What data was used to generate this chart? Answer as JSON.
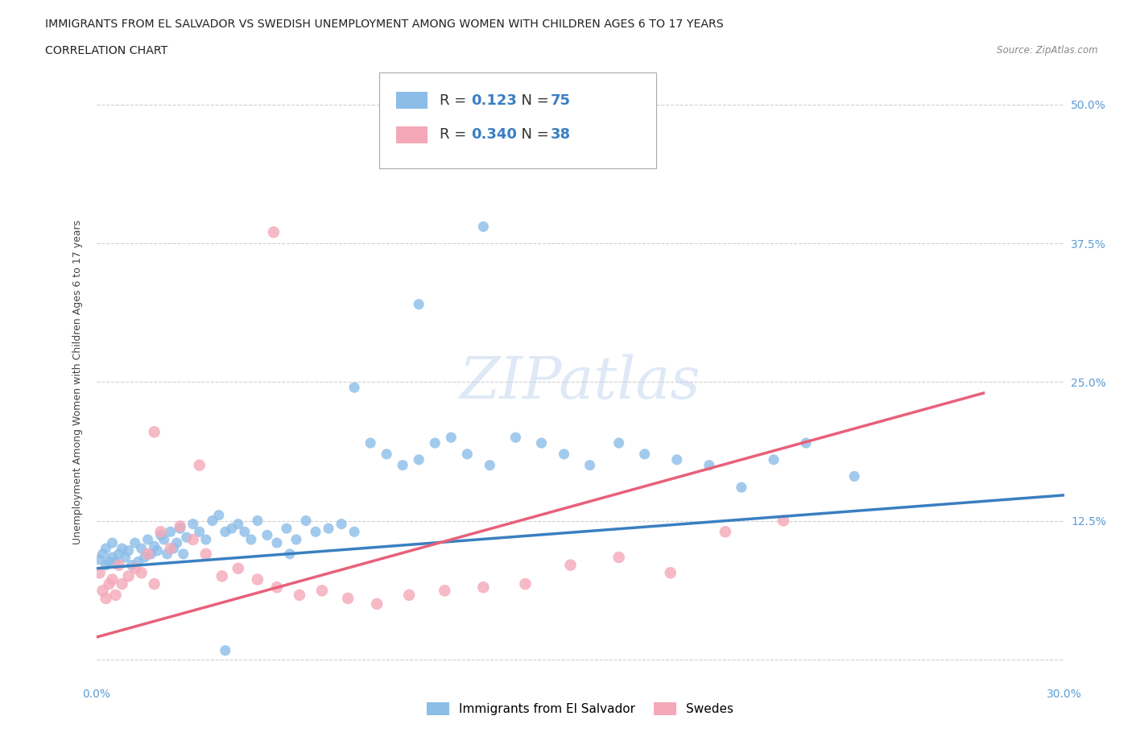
{
  "title_line1": "IMMIGRANTS FROM EL SALVADOR VS SWEDISH UNEMPLOYMENT AMONG WOMEN WITH CHILDREN AGES 6 TO 17 YEARS",
  "title_line2": "CORRELATION CHART",
  "source": "Source: ZipAtlas.com",
  "ylabel": "Unemployment Among Women with Children Ages 6 to 17 years",
  "xlim": [
    0.0,
    0.3
  ],
  "ylim": [
    -0.02,
    0.52
  ],
  "xticks": [
    0.0,
    0.05,
    0.1,
    0.15,
    0.2,
    0.25,
    0.3
  ],
  "xticklabels": [
    "0.0%",
    "",
    "",
    "",
    "",
    "",
    "30.0%"
  ],
  "yticks": [
    0.0,
    0.125,
    0.25,
    0.375,
    0.5
  ],
  "yticklabels": [
    "",
    "12.5%",
    "25.0%",
    "37.5%",
    "50.0%"
  ],
  "series1_color": "#8bbde8",
  "series2_color": "#f4a8b8",
  "trendline1_color": "#3a7fc1",
  "trendline2_color": "#e8607a",
  "legend_r1": "0.123",
  "legend_n1": "75",
  "legend_r2": "0.340",
  "legend_n2": "38",
  "legend_label1": "Immigrants from El Salvador",
  "legend_label2": "Swedes",
  "watermark": "ZIPatlas",
  "background_color": "#ffffff",
  "grid_color": "#d0d0d0",
  "series1_x": [
    0.001,
    0.002,
    0.003,
    0.003,
    0.004,
    0.005,
    0.005,
    0.006,
    0.007,
    0.008,
    0.009,
    0.01,
    0.011,
    0.012,
    0.013,
    0.014,
    0.015,
    0.016,
    0.017,
    0.018,
    0.019,
    0.02,
    0.021,
    0.022,
    0.023,
    0.024,
    0.025,
    0.026,
    0.027,
    0.028,
    0.03,
    0.032,
    0.034,
    0.036,
    0.038,
    0.04,
    0.042,
    0.044,
    0.046,
    0.048,
    0.05,
    0.053,
    0.056,
    0.059,
    0.062,
    0.065,
    0.068,
    0.072,
    0.076,
    0.08,
    0.085,
    0.09,
    0.095,
    0.1,
    0.105,
    0.11,
    0.115,
    0.122,
    0.13,
    0.138,
    0.145,
    0.153,
    0.162,
    0.17,
    0.18,
    0.19,
    0.2,
    0.21,
    0.22,
    0.235,
    0.12,
    0.1,
    0.08,
    0.06,
    0.04
  ],
  "series1_y": [
    0.09,
    0.095,
    0.085,
    0.1,
    0.088,
    0.092,
    0.105,
    0.088,
    0.095,
    0.1,
    0.092,
    0.098,
    0.085,
    0.105,
    0.088,
    0.1,
    0.092,
    0.108,
    0.095,
    0.102,
    0.098,
    0.112,
    0.108,
    0.095,
    0.115,
    0.1,
    0.105,
    0.118,
    0.095,
    0.11,
    0.122,
    0.115,
    0.108,
    0.125,
    0.13,
    0.115,
    0.118,
    0.122,
    0.115,
    0.108,
    0.125,
    0.112,
    0.105,
    0.118,
    0.108,
    0.125,
    0.115,
    0.118,
    0.122,
    0.115,
    0.195,
    0.185,
    0.175,
    0.18,
    0.195,
    0.2,
    0.185,
    0.175,
    0.2,
    0.195,
    0.185,
    0.175,
    0.195,
    0.185,
    0.18,
    0.175,
    0.155,
    0.18,
    0.195,
    0.165,
    0.39,
    0.32,
    0.245,
    0.095,
    0.008
  ],
  "series2_x": [
    0.001,
    0.002,
    0.003,
    0.004,
    0.005,
    0.006,
    0.007,
    0.008,
    0.01,
    0.012,
    0.014,
    0.016,
    0.018,
    0.02,
    0.023,
    0.026,
    0.03,
    0.034,
    0.039,
    0.044,
    0.05,
    0.056,
    0.063,
    0.07,
    0.078,
    0.087,
    0.097,
    0.108,
    0.12,
    0.133,
    0.147,
    0.162,
    0.178,
    0.195,
    0.213,
    0.018,
    0.032,
    0.055
  ],
  "series2_y": [
    0.078,
    0.062,
    0.055,
    0.068,
    0.072,
    0.058,
    0.085,
    0.068,
    0.075,
    0.082,
    0.078,
    0.095,
    0.068,
    0.115,
    0.1,
    0.12,
    0.108,
    0.095,
    0.075,
    0.082,
    0.072,
    0.065,
    0.058,
    0.062,
    0.055,
    0.05,
    0.058,
    0.062,
    0.065,
    0.068,
    0.085,
    0.092,
    0.078,
    0.115,
    0.125,
    0.205,
    0.175,
    0.385
  ],
  "trendline1_x": [
    0.0,
    0.3
  ],
  "trendline1_y": [
    0.082,
    0.148
  ],
  "trendline2_x": [
    0.0,
    0.275
  ],
  "trendline2_y": [
    0.02,
    0.24
  ]
}
